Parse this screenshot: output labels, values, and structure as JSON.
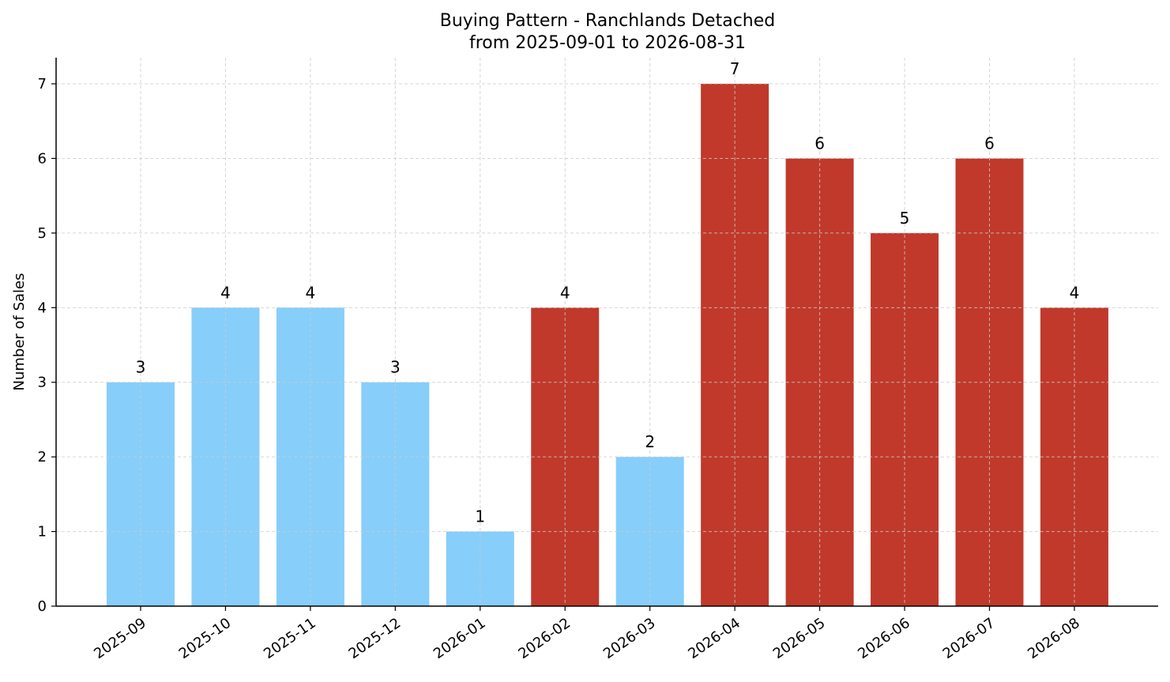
{
  "chart_data": {
    "type": "bar",
    "title": "Buying Pattern - Ranchlands Detached",
    "subtitle": "from 2025-09-01 to 2026-08-31",
    "xlabel": "",
    "ylabel": "Number of Sales",
    "categories": [
      "2025-09",
      "2025-10",
      "2025-11",
      "2025-12",
      "2026-01",
      "2026-02",
      "2026-03",
      "2026-04",
      "2026-05",
      "2026-06",
      "2026-07",
      "2026-08"
    ],
    "values": [
      3,
      4,
      4,
      3,
      1,
      4,
      2,
      7,
      6,
      5,
      6,
      4
    ],
    "bar_colors": [
      "#87CEFA",
      "#87CEFA",
      "#87CEFA",
      "#87CEFA",
      "#87CEFA",
      "#C0392B",
      "#87CEFA",
      "#C0392B",
      "#C0392B",
      "#C0392B",
      "#C0392B",
      "#C0392B"
    ],
    "ylim": [
      0,
      7.35
    ],
    "yticks": [
      0,
      1,
      2,
      3,
      4,
      5,
      6,
      7
    ],
    "grid": true,
    "legend": "none"
  }
}
